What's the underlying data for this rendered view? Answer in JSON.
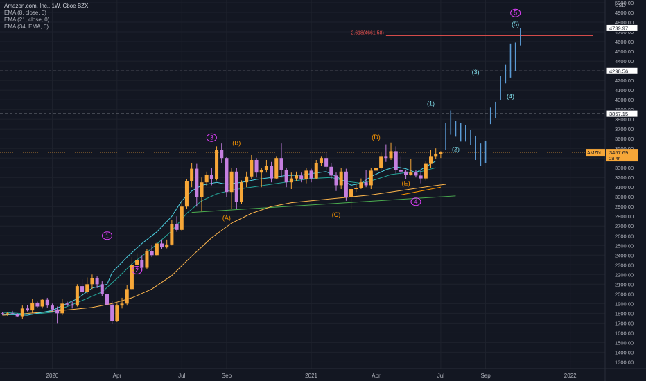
{
  "chart_data": {
    "type": "candlestick",
    "title": "Amazon.com, Inc., 1W, Cboe BZX",
    "indicators": [
      "EMA (8, close, 0)",
      "EMA (21, close, 0)",
      "EMA (34, EMA, 0)"
    ],
    "currency_label": "USD",
    "y_axis": {
      "range": [
        1260,
        5000
      ],
      "ticks": [
        1300,
        1400,
        1500,
        1600,
        1700,
        1800,
        1900,
        2000,
        2100,
        2200,
        2300,
        2400,
        2500,
        2600,
        2700,
        2800,
        2900,
        3000,
        3100,
        3200,
        3300,
        3400,
        3500,
        3600,
        3700,
        3800,
        3900,
        4000,
        4100,
        4200,
        4300,
        4400,
        4500,
        4600,
        4700,
        4800,
        4900,
        5000
      ],
      "tick_labels": [
        "1300.00",
        "1400.00",
        "1500.00",
        "1600.00",
        "1700.00",
        "1800.00",
        "1900.00",
        "2000.00",
        "2100.00",
        "2200.00",
        "2300.00",
        "2400.00",
        "2500.00",
        "2600.00",
        "2700.00",
        "2800.00",
        "2900.00",
        "3000.00",
        "3100.00",
        "3200.00",
        "3300.00",
        "3400.00",
        "3500.00",
        "3600.00",
        "3700.00",
        "3800.00",
        "3900.00",
        "4000.00",
        "4100.00",
        "4200.00",
        "4300.00",
        "4400.00",
        "4500.00",
        "4600.00",
        "4700.00",
        "4800.00",
        "4900.00",
        "5000.00"
      ]
    },
    "x_axis": {
      "labels": [
        "2020",
        "Apr",
        "Jul",
        "Sep",
        "2021",
        "Apr",
        "Jul",
        "Sep",
        "2022"
      ],
      "label_index": [
        10,
        23,
        36,
        45,
        62,
        75,
        88,
        97,
        114
      ]
    },
    "price_label": {
      "ticker": "AMZN",
      "value": "3457.69",
      "countdown": "2d 4h",
      "value_num": 3457.69
    },
    "level_labels": [
      {
        "value": 4739.97,
        "text": "4739.97"
      },
      {
        "value": 4298.56,
        "text": "4298.56"
      },
      {
        "value": 3857.15,
        "text": "3857.15"
      }
    ],
    "fib_level": {
      "text": "2.618(4661.58)",
      "value": 4661.58
    },
    "resistance_line": {
      "value": 3555,
      "from": 36,
      "to": 92
    },
    "trend_lines": [
      {
        "name": "green-trendline",
        "color": "#4caf50",
        "points": [
          [
            38,
            2840
          ],
          [
            91,
            3010
          ]
        ]
      },
      {
        "name": "orange-trendline",
        "color": "#ff9800",
        "points": [
          [
            80,
            3020
          ],
          [
            88,
            3100
          ]
        ]
      }
    ],
    "ema_fast": [
      [
        0,
        1790
      ],
      [
        5,
        1780
      ],
      [
        10,
        1830
      ],
      [
        15,
        1950
      ],
      [
        18,
        2060
      ],
      [
        21,
        2100
      ],
      [
        22,
        2220
      ],
      [
        25,
        2380
      ],
      [
        28,
        2520
      ],
      [
        31,
        2640
      ],
      [
        34,
        2800
      ],
      [
        36,
        2960
      ],
      [
        38,
        3060
      ],
      [
        40,
        3120
      ],
      [
        43,
        3150
      ],
      [
        45,
        3130
      ],
      [
        48,
        3150
      ],
      [
        51,
        3180
      ],
      [
        54,
        3200
      ],
      [
        57,
        3220
      ],
      [
        60,
        3225
      ],
      [
        62,
        3240
      ],
      [
        65,
        3260
      ],
      [
        67,
        3210
      ],
      [
        70,
        3120
      ],
      [
        72,
        3140
      ],
      [
        74,
        3210
      ],
      [
        77,
        3280
      ],
      [
        79,
        3310
      ],
      [
        81,
        3290
      ],
      [
        83,
        3250
      ],
      [
        85,
        3310
      ],
      [
        87,
        3370
      ]
    ],
    "ema_mid": [
      [
        0,
        1810
      ],
      [
        6,
        1790
      ],
      [
        10,
        1810
      ],
      [
        15,
        1910
      ],
      [
        20,
        2020
      ],
      [
        23,
        2160
      ],
      [
        26,
        2310
      ],
      [
        30,
        2470
      ],
      [
        34,
        2650
      ],
      [
        37,
        2830
      ],
      [
        40,
        2960
      ],
      [
        43,
        3030
      ],
      [
        46,
        3070
      ],
      [
        50,
        3100
      ],
      [
        54,
        3130
      ],
      [
        58,
        3160
      ],
      [
        62,
        3190
      ],
      [
        66,
        3200
      ],
      [
        69,
        3160
      ],
      [
        72,
        3140
      ],
      [
        75,
        3180
      ],
      [
        78,
        3230
      ],
      [
        81,
        3250
      ],
      [
        84,
        3260
      ],
      [
        87,
        3300
      ]
    ],
    "ema_slow": [
      [
        0,
        1780
      ],
      [
        8,
        1810
      ],
      [
        14,
        1840
      ],
      [
        18,
        1860
      ],
      [
        22,
        1900
      ],
      [
        26,
        1960
      ],
      [
        30,
        2050
      ],
      [
        34,
        2190
      ],
      [
        38,
        2390
      ],
      [
        42,
        2580
      ],
      [
        46,
        2730
      ],
      [
        50,
        2830
      ],
      [
        54,
        2900
      ],
      [
        58,
        2940
      ],
      [
        62,
        2960
      ],
      [
        66,
        2980
      ],
      [
        70,
        3000
      ],
      [
        74,
        3020
      ],
      [
        78,
        3050
      ],
      [
        82,
        3080
      ],
      [
        86,
        3110
      ],
      [
        89,
        3130
      ]
    ],
    "candles": [
      [
        0,
        1800,
        1815,
        1780,
        1790
      ],
      [
        1,
        1790,
        1815,
        1775,
        1800
      ],
      [
        2,
        1800,
        1825,
        1790,
        1795
      ],
      [
        3,
        1795,
        1800,
        1760,
        1770
      ],
      [
        4,
        1770,
        1880,
        1740,
        1850
      ],
      [
        5,
        1850,
        1885,
        1820,
        1830
      ],
      [
        6,
        1830,
        1950,
        1805,
        1910
      ],
      [
        7,
        1910,
        1920,
        1860,
        1870
      ],
      [
        8,
        1870,
        1950,
        1850,
        1940
      ],
      [
        9,
        1940,
        1960,
        1860,
        1880
      ],
      [
        10,
        1880,
        1900,
        1820,
        1840
      ],
      [
        11,
        1840,
        1870,
        1700,
        1800
      ],
      [
        12,
        1800,
        1950,
        1780,
        1900
      ],
      [
        13,
        1900,
        1920,
        1870,
        1890
      ],
      [
        14,
        1890,
        1920,
        1850,
        1880
      ],
      [
        15,
        1880,
        2100,
        1870,
        2080
      ],
      [
        16,
        2080,
        2150,
        1980,
        2020
      ],
      [
        17,
        2020,
        2170,
        2000,
        2100
      ],
      [
        18,
        2100,
        2200,
        2050,
        2160
      ],
      [
        19,
        2160,
        2180,
        2060,
        2100
      ],
      [
        20,
        2100,
        2130,
        1980,
        2000
      ],
      [
        21,
        2000,
        2020,
        1880,
        1890
      ],
      [
        22,
        1890,
        1930,
        1690,
        1720
      ],
      [
        23,
        1720,
        1900,
        1710,
        1880
      ],
      [
        24,
        1880,
        1960,
        1850,
        1900
      ],
      [
        25,
        1900,
        2090,
        1880,
        2050
      ],
      [
        26,
        2050,
        2380,
        2040,
        2300
      ],
      [
        27,
        2300,
        2420,
        2290,
        2350
      ],
      [
        28,
        2350,
        2400,
        2240,
        2270
      ],
      [
        29,
        2270,
        2460,
        2260,
        2440
      ],
      [
        30,
        2440,
        2500,
        2380,
        2400
      ],
      [
        31,
        2400,
        2530,
        2390,
        2520
      ],
      [
        32,
        2520,
        2560,
        2460,
        2480
      ],
      [
        33,
        2480,
        2560,
        2470,
        2510
      ],
      [
        34,
        2510,
        2760,
        2500,
        2720
      ],
      [
        35,
        2720,
        2800,
        2640,
        2660
      ],
      [
        36,
        2660,
        2960,
        2650,
        2900
      ],
      [
        37,
        2900,
        3180,
        2880,
        3160
      ],
      [
        38,
        3160,
        3350,
        3100,
        3290
      ],
      [
        39,
        3290,
        3340,
        2900,
        3000
      ],
      [
        40,
        3000,
        3200,
        2850,
        3150
      ],
      [
        41,
        3150,
        3260,
        3110,
        3230
      ],
      [
        42,
        3230,
        3300,
        3120,
        3180
      ],
      [
        43,
        3180,
        3520,
        3170,
        3480
      ],
      [
        44,
        3480,
        3550,
        3350,
        3400
      ],
      [
        45,
        3400,
        3410,
        3000,
        3050
      ],
      [
        46,
        3050,
        3300,
        2880,
        3260
      ],
      [
        47,
        3260,
        3300,
        2880,
        2950
      ],
      [
        48,
        2950,
        3170,
        2930,
        3150
      ],
      [
        49,
        3150,
        3260,
        3100,
        3210
      ],
      [
        50,
        3210,
        3430,
        3180,
        3380
      ],
      [
        51,
        3380,
        3400,
        3200,
        3250
      ],
      [
        52,
        3250,
        3300,
        3100,
        3280
      ],
      [
        53,
        3280,
        3380,
        3250,
        3320
      ],
      [
        54,
        3320,
        3360,
        3150,
        3190
      ],
      [
        55,
        3190,
        3420,
        3180,
        3400
      ],
      [
        56,
        3400,
        3550,
        3200,
        3280
      ],
      [
        57,
        3280,
        3300,
        3100,
        3150
      ],
      [
        58,
        3150,
        3250,
        3080,
        3190
      ],
      [
        59,
        3190,
        3260,
        3160,
        3220
      ],
      [
        60,
        3220,
        3250,
        3150,
        3180
      ],
      [
        61,
        3180,
        3300,
        3140,
        3270
      ],
      [
        62,
        3270,
        3290,
        3150,
        3190
      ],
      [
        63,
        3190,
        3380,
        3180,
        3350
      ],
      [
        64,
        3350,
        3420,
        3320,
        3400
      ],
      [
        65,
        3400,
        3450,
        3280,
        3310
      ],
      [
        66,
        3310,
        3350,
        3180,
        3220
      ],
      [
        67,
        3220,
        3250,
        3060,
        3120
      ],
      [
        68,
        3120,
        3300,
        3080,
        3260
      ],
      [
        69,
        3260,
        3290,
        2960,
        3000
      ],
      [
        70,
        3000,
        3100,
        2880,
        3080
      ],
      [
        71,
        3080,
        3130,
        3050,
        3090
      ],
      [
        72,
        3090,
        3190,
        3080,
        3150
      ],
      [
        73,
        3150,
        3280,
        3100,
        3120
      ],
      [
        74,
        3120,
        3300,
        3080,
        3270
      ],
      [
        75,
        3270,
        3360,
        3250,
        3300
      ],
      [
        76,
        3300,
        3460,
        3270,
        3420
      ],
      [
        77,
        3420,
        3540,
        3360,
        3400
      ],
      [
        78,
        3400,
        3560,
        3380,
        3470
      ],
      [
        79,
        3470,
        3520,
        3240,
        3280
      ],
      [
        80,
        3280,
        3420,
        3230,
        3260
      ],
      [
        81,
        3260,
        3280,
        3180,
        3230
      ],
      [
        82,
        3230,
        3390,
        3220,
        3250
      ],
      [
        83,
        3250,
        3280,
        3200,
        3220
      ],
      [
        84,
        3220,
        3280,
        3140,
        3190
      ],
      [
        85,
        3190,
        3370,
        3170,
        3340
      ],
      [
        86,
        3340,
        3480,
        3300,
        3420
      ],
      [
        87,
        3420,
        3500,
        3390,
        3440
      ],
      [
        88,
        3440,
        3470,
        3400,
        3458
      ]
    ],
    "projection_bars": [
      [
        89,
        3480,
        3760
      ],
      [
        90,
        3640,
        3890
      ],
      [
        91,
        3620,
        3780
      ],
      [
        92,
        3570,
        3760
      ],
      [
        93,
        3570,
        3740
      ],
      [
        94,
        3530,
        3690
      ],
      [
        95,
        3380,
        3630
      ],
      [
        96,
        3320,
        3550
      ],
      [
        97,
        3350,
        3580
      ],
      [
        98,
        3750,
        3920
      ],
      [
        99,
        3810,
        3980
      ],
      [
        100,
        4000,
        4250
      ],
      [
        101,
        4170,
        4360
      ],
      [
        102,
        4230,
        4580
      ],
      [
        103,
        4300,
        4590
      ],
      [
        104,
        4560,
        4740
      ]
    ],
    "wave_labels": [
      {
        "text": "1",
        "x": 21,
        "y": 2600,
        "color": "#e040fb",
        "circle": true
      },
      {
        "text": "2",
        "x": 27,
        "y": 2245,
        "color": "#e040fb",
        "circle": true
      },
      {
        "text": "3",
        "x": 42,
        "y": 3610,
        "color": "#e040fb",
        "circle": true
      },
      {
        "text": "(A)",
        "x": 45,
        "y": 2785,
        "color": "#ff9800",
        "circle": false
      },
      {
        "text": "(B)",
        "x": 47,
        "y": 3555,
        "color": "#ff9800",
        "circle": false
      },
      {
        "text": "(C)",
        "x": 67,
        "y": 2815,
        "color": "#ff9800",
        "circle": false
      },
      {
        "text": "(D)",
        "x": 75,
        "y": 3615,
        "color": "#ff9800",
        "circle": false
      },
      {
        "text": "(E)",
        "x": 81,
        "y": 3140,
        "color": "#ff9800",
        "circle": false
      },
      {
        "text": "4",
        "x": 83,
        "y": 2950,
        "color": "#e040fb",
        "circle": true
      },
      {
        "text": "(1)",
        "x": 86,
        "y": 3960,
        "color": "#80deea",
        "circle": false
      },
      {
        "text": "(2)",
        "x": 91,
        "y": 3490,
        "color": "#80deea",
        "circle": false
      },
      {
        "text": "(3)",
        "x": 95,
        "y": 4285,
        "color": "#80deea",
        "circle": false
      },
      {
        "text": "(4)",
        "x": 102,
        "y": 4035,
        "color": "#80deea",
        "circle": false
      },
      {
        "text": "5",
        "x": 103,
        "y": 4895,
        "color": "#e040fb",
        "circle": true
      },
      {
        "text": "(5)",
        "x": 103,
        "y": 4780,
        "color": "#80deea",
        "circle": false
      }
    ]
  },
  "colors": {
    "bg": "#131722",
    "grid": "#1e222d",
    "up": "#f7a738",
    "down": "#c57fe0",
    "projection": "#5b9bd5",
    "ema_fast": "#4dd0e1",
    "ema_mid": "#26a69a",
    "ema_slow": "#ffb74d",
    "resistance": "#ef5350",
    "fib": "#ef5350",
    "dashed": "#d1d4dc",
    "price_tag": "#f7a738",
    "axis_text": "#b2b5be"
  }
}
